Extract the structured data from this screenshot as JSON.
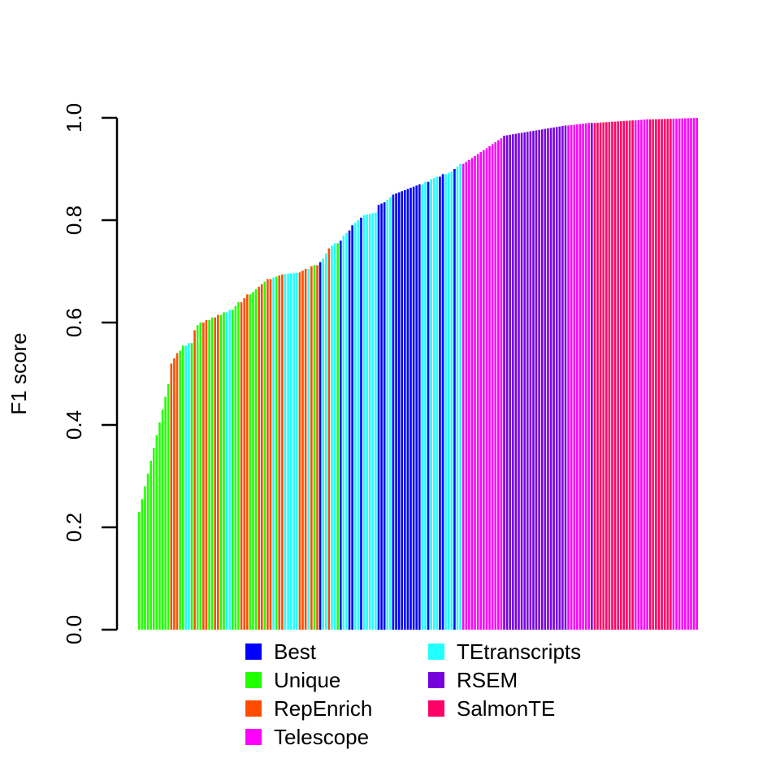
{
  "chart_data": {
    "type": "bar",
    "ylabel": "F1 score",
    "ylim": [
      0,
      1
    ],
    "yticks": [
      "0.0",
      "0.2",
      "0.4",
      "0.6",
      "0.8",
      "1.0"
    ],
    "legend_position": "bottom-center",
    "colors": {
      "Best": "#0000FF",
      "Unique": "#22FF00",
      "RepEnrich": "#FF4D00",
      "Telescope": "#FF00FF",
      "TEtranscripts": "#22FFFF",
      "RSEM": "#7700DD",
      "SalmonTE": "#FF0066"
    },
    "legend": [
      "Best",
      "Unique",
      "RepEnrich",
      "Telescope",
      "TEtranscripts",
      "RSEM",
      "SalmonTE"
    ],
    "segments": [
      {
        "method": "Unique",
        "start": 0.23,
        "end": 0.48,
        "n": 11
      },
      {
        "method": "RepEnrich",
        "start": 0.52,
        "end": 0.54,
        "n": 3
      },
      {
        "method": "Unique",
        "start": 0.545,
        "end": 0.555,
        "n": 2
      },
      {
        "method": "TEtranscripts",
        "start": 0.555,
        "end": 0.56,
        "n": 2
      },
      {
        "method": "Unique",
        "start": 0.56,
        "end": 0.56,
        "n": 1
      },
      {
        "method": "RepEnrich",
        "start": 0.585,
        "end": 0.585,
        "n": 1
      },
      {
        "method": "Unique",
        "start": 0.595,
        "end": 0.6,
        "n": 2
      },
      {
        "method": "RepEnrich",
        "start": 0.6,
        "end": 0.605,
        "n": 2
      },
      {
        "method": "Unique",
        "start": 0.605,
        "end": 0.61,
        "n": 2
      },
      {
        "method": "RepEnrich",
        "start": 0.61,
        "end": 0.615,
        "n": 2
      },
      {
        "method": "Unique",
        "start": 0.615,
        "end": 0.62,
        "n": 2
      },
      {
        "method": "TEtranscripts",
        "start": 0.62,
        "end": 0.625,
        "n": 2
      },
      {
        "method": "Unique",
        "start": 0.625,
        "end": 0.64,
        "n": 3
      },
      {
        "method": "RepEnrich",
        "start": 0.64,
        "end": 0.655,
        "n": 3
      },
      {
        "method": "Unique",
        "start": 0.655,
        "end": 0.665,
        "n": 3
      },
      {
        "method": "RepEnrich",
        "start": 0.67,
        "end": 0.675,
        "n": 2
      },
      {
        "method": "Unique",
        "start": 0.68,
        "end": 0.68,
        "n": 1
      },
      {
        "method": "RepEnrich",
        "start": 0.685,
        "end": 0.685,
        "n": 2
      },
      {
        "method": "TEtranscripts",
        "start": 0.688,
        "end": 0.688,
        "n": 1
      },
      {
        "method": "Unique",
        "start": 0.69,
        "end": 0.69,
        "n": 1
      },
      {
        "method": "RepEnrich",
        "start": 0.692,
        "end": 0.694,
        "n": 2
      },
      {
        "method": "TEtranscripts",
        "start": 0.695,
        "end": 0.697,
        "n": 5
      },
      {
        "method": "RepEnrich",
        "start": 0.698,
        "end": 0.705,
        "n": 3
      },
      {
        "method": "TEtranscripts",
        "start": 0.705,
        "end": 0.705,
        "n": 1
      },
      {
        "method": "RepEnrich",
        "start": 0.71,
        "end": 0.71,
        "n": 1
      },
      {
        "method": "Unique",
        "start": 0.712,
        "end": 0.712,
        "n": 1
      },
      {
        "method": "RepEnrich",
        "start": 0.712,
        "end": 0.713,
        "n": 1
      },
      {
        "method": "Best",
        "start": 0.718,
        "end": 0.72,
        "n": 1
      },
      {
        "method": "TEtranscripts",
        "start": 0.725,
        "end": 0.735,
        "n": 2
      },
      {
        "method": "RepEnrich",
        "start": 0.745,
        "end": 0.745,
        "n": 1
      },
      {
        "method": "TEtranscripts",
        "start": 0.75,
        "end": 0.755,
        "n": 2
      },
      {
        "method": "Unique",
        "start": 0.755,
        "end": 0.755,
        "n": 1
      },
      {
        "method": "Best",
        "start": 0.76,
        "end": 0.765,
        "n": 1
      },
      {
        "method": "TEtranscripts",
        "start": 0.77,
        "end": 0.775,
        "n": 2
      },
      {
        "method": "Best",
        "start": 0.78,
        "end": 0.79,
        "n": 2
      },
      {
        "method": "TEtranscripts",
        "start": 0.795,
        "end": 0.8,
        "n": 2
      },
      {
        "method": "Best",
        "start": 0.805,
        "end": 0.81,
        "n": 1
      },
      {
        "method": "TEtranscripts",
        "start": 0.81,
        "end": 0.815,
        "n": 5
      },
      {
        "method": "Best",
        "start": 0.83,
        "end": 0.835,
        "n": 3
      },
      {
        "method": "TEtranscripts",
        "start": 0.84,
        "end": 0.845,
        "n": 2
      },
      {
        "method": "Best",
        "start": 0.85,
        "end": 0.87,
        "n": 10
      },
      {
        "method": "TEtranscripts",
        "start": 0.87,
        "end": 0.875,
        "n": 2
      },
      {
        "method": "Best",
        "start": 0.875,
        "end": 0.88,
        "n": 1
      },
      {
        "method": "TEtranscripts",
        "start": 0.88,
        "end": 0.885,
        "n": 3
      },
      {
        "method": "Best",
        "start": 0.885,
        "end": 0.89,
        "n": 2
      },
      {
        "method": "TEtranscripts",
        "start": 0.89,
        "end": 0.895,
        "n": 3
      },
      {
        "method": "Best",
        "start": 0.9,
        "end": 0.905,
        "n": 1
      },
      {
        "method": "TEtranscripts",
        "start": 0.905,
        "end": 0.91,
        "n": 2
      },
      {
        "method": "Telescope",
        "start": 0.91,
        "end": 0.96,
        "n": 14
      },
      {
        "method": "RSEM",
        "start": 0.965,
        "end": 0.985,
        "n": 22
      },
      {
        "method": "Telescope",
        "start": 0.985,
        "end": 0.99,
        "n": 8
      },
      {
        "method": "RSEM",
        "start": 0.99,
        "end": 0.99,
        "n": 1
      },
      {
        "method": "SalmonTE",
        "start": 0.99,
        "end": 0.995,
        "n": 14
      },
      {
        "method": "Telescope",
        "start": 0.995,
        "end": 0.997,
        "n": 5
      },
      {
        "method": "SalmonTE",
        "start": 0.997,
        "end": 0.998,
        "n": 8
      },
      {
        "method": "Telescope",
        "start": 0.998,
        "end": 1.0,
        "n": 9
      }
    ]
  }
}
